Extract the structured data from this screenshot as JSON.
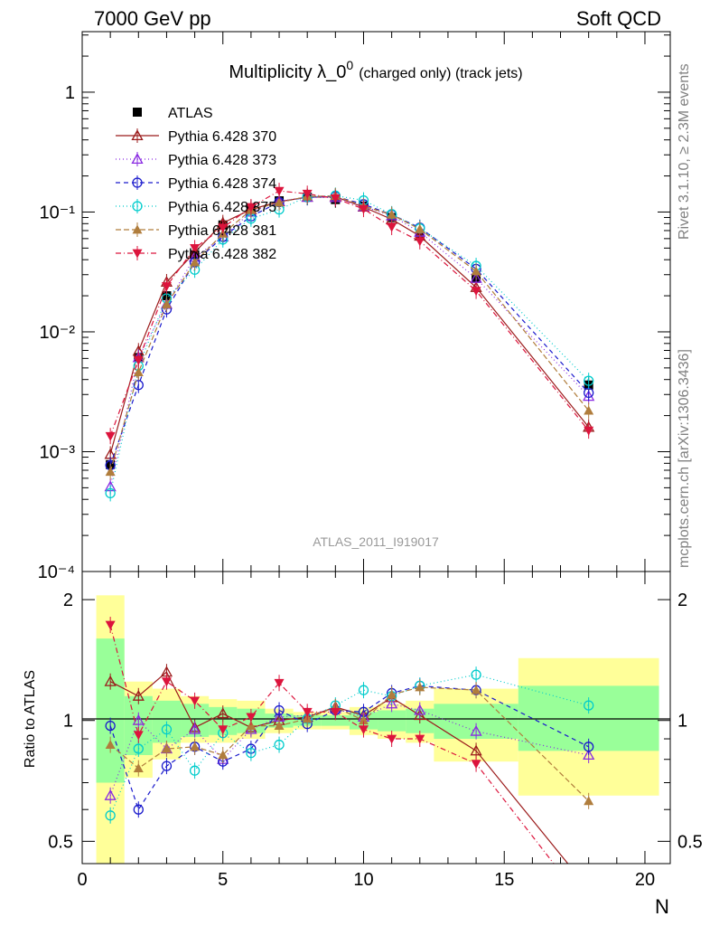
{
  "header": {
    "energy_label": "7000 GeV pp",
    "process_label": "Soft QCD"
  },
  "side_labels": {
    "rivet": "Rivet 3.1.10, ≥ 2.3M events",
    "mcplots": "mcplots.cern.ch [arXiv:1306.3436]"
  },
  "watermark": "ATLAS_2011_I919017",
  "chart_data": [
    {
      "type": "line",
      "title": "Multiplicity λ_0",
      "title_sup": "0",
      "title_suffix": "(charged only) (track jets)",
      "xlabel": "",
      "ylabel": "",
      "yscale": "log",
      "xlim": [
        0,
        20.9
      ],
      "ylim": [
        0.0001,
        3.2
      ],
      "y_tick_labels": [
        "1",
        "10⁻¹",
        "10⁻²",
        "10⁻³",
        "10⁻⁴"
      ],
      "y_tick_values": [
        1,
        0.1,
        0.01,
        0.001,
        0.0001
      ],
      "legend_position": "top-left",
      "x": [
        1,
        2,
        3,
        4,
        5,
        6,
        7,
        8,
        9,
        10,
        11,
        12,
        14,
        18
      ],
      "series": [
        {
          "name": "ATLAS",
          "color": "#000000",
          "marker": "square",
          "dash": "none",
          "values": [
            0.00078,
            0.0061,
            0.02,
            0.044,
            0.078,
            0.108,
            0.124,
            0.133,
            0.127,
            0.112,
            0.09,
            0.063,
            0.028,
            0.0036
          ]
        },
        {
          "name": "Pythia 6.428 370",
          "color": "#9b1b1b",
          "marker": "triangle-open",
          "dash": "solid",
          "values": [
            0.00095,
            0.0069,
            0.026,
            0.046,
            0.081,
            0.105,
            0.122,
            0.133,
            0.134,
            0.11,
            0.087,
            0.063,
            0.0235,
            0.0016
          ]
        },
        {
          "name": "Pythia 6.428 373",
          "color": "#8a2be2",
          "marker": "triangle-open",
          "dash": "1,3",
          "values": [
            0.00051,
            0.0061,
            0.017,
            0.042,
            0.062,
            0.1,
            0.123,
            0.133,
            0.132,
            0.111,
            0.093,
            0.068,
            0.028,
            0.0029
          ]
        },
        {
          "name": "Pythia 6.428 374",
          "color": "#1a1acc",
          "marker": "circle-open",
          "dash": "5,4",
          "values": [
            0.00077,
            0.0036,
            0.0154,
            0.038,
            0.062,
            0.092,
            0.121,
            0.133,
            0.135,
            0.116,
            0.095,
            0.074,
            0.0335,
            0.0031
          ]
        },
        {
          "name": "Pythia 6.428 375",
          "color": "#00cccc",
          "marker": "circle-open",
          "dash": "1,3",
          "values": [
            0.00045,
            0.0052,
            0.019,
            0.033,
            0.059,
            0.088,
            0.105,
            0.134,
            0.137,
            0.125,
            0.096,
            0.073,
            0.0355,
            0.0039
          ]
        },
        {
          "name": "Pythia 6.428 381",
          "color": "#b07d3c",
          "marker": "triangle-filled",
          "dash": "6,3",
          "values": [
            0.00068,
            0.0046,
            0.017,
            0.038,
            0.066,
            0.104,
            0.12,
            0.135,
            0.136,
            0.112,
            0.095,
            0.072,
            0.032,
            0.0022
          ]
        },
        {
          "name": "Pythia 6.428 382",
          "color": "#dc143c",
          "marker": "triangle-down-filled",
          "dash": "6,3,1,3",
          "values": [
            0.00135,
            0.0058,
            0.024,
            0.05,
            0.074,
            0.11,
            0.15,
            0.142,
            0.13,
            0.106,
            0.075,
            0.057,
            0.022,
            0.0015
          ]
        }
      ]
    },
    {
      "type": "line",
      "title": "",
      "xlabel": "N",
      "ylabel": "Ratio to ATLAS",
      "yscale": "log",
      "xlim": [
        0,
        20.9
      ],
      "ylim": [
        0.44,
        2.35
      ],
      "x_ticks": [
        0,
        5,
        10,
        15,
        20
      ],
      "x_tick_labels": [
        "0",
        "5",
        "10",
        "15",
        "20"
      ],
      "y_ticks": [
        0.5,
        1,
        2
      ],
      "y_tick_labels": [
        "0.5",
        "1",
        "2"
      ],
      "x": [
        1,
        2,
        3,
        4,
        5,
        6,
        7,
        8,
        9,
        10,
        11,
        12,
        14,
        18
      ],
      "bands": [
        {
          "name": "stat+syst (yellow)",
          "color": "#ffff99",
          "bins": [
            [
              0.5,
              1.5,
              0.3,
              2.05
            ],
            [
              1.5,
              2.5,
              0.72,
              1.25
            ],
            [
              2.5,
              3.5,
              0.8,
              1.2
            ],
            [
              3.5,
              4.5,
              0.88,
              1.15
            ],
            [
              4.5,
              5.5,
              0.88,
              1.13
            ],
            [
              5.5,
              6.5,
              0.9,
              1.12
            ],
            [
              6.5,
              7.5,
              0.93,
              1.07
            ],
            [
              7.5,
              8.5,
              0.95,
              1.05
            ],
            [
              8.5,
              9.5,
              0.95,
              1.05
            ],
            [
              9.5,
              10.5,
              0.92,
              1.08
            ],
            [
              10.5,
              11.5,
              0.9,
              1.1
            ],
            [
              11.5,
              12.5,
              0.88,
              1.12
            ],
            [
              12.5,
              15.5,
              0.79,
              1.2
            ],
            [
              15.5,
              20.5,
              0.65,
              1.43
            ]
          ]
        },
        {
          "name": "stat (green)",
          "color": "#99ff99",
          "bins": [
            [
              0.5,
              1.5,
              0.7,
              1.6
            ],
            [
              1.5,
              2.5,
              0.82,
              1.15
            ],
            [
              2.5,
              3.5,
              0.88,
              1.12
            ],
            [
              3.5,
              4.5,
              0.91,
              1.1
            ],
            [
              4.5,
              5.5,
              0.92,
              1.08
            ],
            [
              5.5,
              6.5,
              0.93,
              1.07
            ],
            [
              6.5,
              7.5,
              0.96,
              1.04
            ],
            [
              7.5,
              8.5,
              0.97,
              1.03
            ],
            [
              8.5,
              9.5,
              0.97,
              1.03
            ],
            [
              9.5,
              10.5,
              0.95,
              1.05
            ],
            [
              10.5,
              11.5,
              0.94,
              1.06
            ],
            [
              11.5,
              12.5,
              0.93,
              1.07
            ],
            [
              12.5,
              15.5,
              0.9,
              1.1
            ],
            [
              15.5,
              20.5,
              0.84,
              1.22
            ]
          ]
        }
      ],
      "series": [
        {
          "name": "Pythia 6.428 370",
          "values": [
            1.25,
            1.15,
            1.32,
            0.96,
            1.04,
            0.96,
            1.0,
            1.02,
            1.08,
            1.03,
            1.14,
            1.03,
            0.84,
            0.38
          ]
        },
        {
          "name": "Pythia 6.428 373",
          "values": [
            0.65,
            1.0,
            0.85,
            0.95,
            0.8,
            0.95,
            1.02,
            1.03,
            1.07,
            1.02,
            1.1,
            1.06,
            0.94,
            0.82
          ]
        },
        {
          "name": "Pythia 6.428 374",
          "values": [
            0.97,
            0.6,
            0.77,
            0.86,
            0.79,
            0.85,
            1.06,
            0.98,
            1.06,
            1.05,
            1.17,
            1.22,
            1.19,
            0.86
          ]
        },
        {
          "name": "Pythia 6.428 375",
          "values": [
            0.58,
            0.85,
            0.95,
            0.75,
            0.93,
            0.83,
            0.87,
            1.01,
            1.09,
            1.19,
            1.15,
            1.22,
            1.3,
            1.09
          ]
        },
        {
          "name": "Pythia 6.428 381",
          "values": [
            0.87,
            0.76,
            0.85,
            0.86,
            0.82,
            0.97,
            0.97,
            1.01,
            1.08,
            1.0,
            1.16,
            1.21,
            1.19,
            0.63
          ]
        },
        {
          "name": "Pythia 6.428 382",
          "values": [
            1.73,
            0.92,
            1.25,
            1.12,
            0.95,
            1.02,
            1.24,
            1.05,
            1.05,
            0.95,
            0.9,
            0.9,
            0.78,
            0.34
          ]
        }
      ]
    }
  ]
}
